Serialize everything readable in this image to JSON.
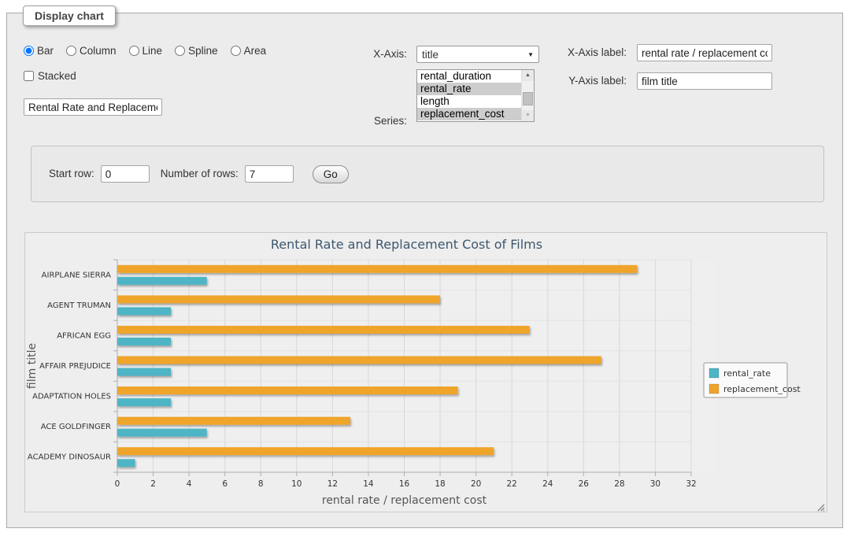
{
  "window": {
    "legend": "Display chart"
  },
  "controls": {
    "chart_types": {
      "options": [
        {
          "label": "Bar",
          "selected": true
        },
        {
          "label": "Column",
          "selected": false
        },
        {
          "label": "Line",
          "selected": false
        },
        {
          "label": "Spline",
          "selected": false
        },
        {
          "label": "Area",
          "selected": false
        }
      ]
    },
    "stacked": {
      "label": "Stacked",
      "checked": false
    },
    "chart_title_input": {
      "value": "Rental Rate and Replacement Cost of Films"
    },
    "x_axis": {
      "label": "X-Axis:",
      "value": "title"
    },
    "series_list": {
      "label": "Series:",
      "options": [
        {
          "label": "rental_duration",
          "selected": false
        },
        {
          "label": "rental_rate",
          "selected": true
        },
        {
          "label": "length",
          "selected": false
        },
        {
          "label": "replacement_cost",
          "selected": true
        }
      ]
    },
    "x_axis_label": {
      "label": "X-Axis label:",
      "value": "rental rate / replacement cost"
    },
    "y_axis_label": {
      "label": "Y-Axis label:",
      "value": "film title"
    }
  },
  "row_controls": {
    "start_row_label": "Start row:",
    "start_row_value": "0",
    "num_rows_label": "Number of rows:",
    "num_rows_value": "7",
    "go_label": "Go"
  },
  "chart_data": {
    "type": "bar",
    "title": "Rental Rate and Replacement Cost of Films",
    "categories": [
      "AIRPLANE SIERRA",
      "AGENT TRUMAN",
      "AFRICAN EGG",
      "AFFAIR PREJUDICE",
      "ADAPTATION HOLES",
      "ACE GOLDFINGER",
      "ACADEMY DINOSAUR"
    ],
    "series": [
      {
        "name": "rental_rate",
        "color": "#4db5c5",
        "values": [
          4.99,
          2.99,
          2.99,
          2.99,
          2.99,
          4.99,
          0.99
        ]
      },
      {
        "name": "replacement_cost",
        "color": "#efa42b",
        "values": [
          28.99,
          17.99,
          22.99,
          26.99,
          18.99,
          12.99,
          20.99
        ]
      }
    ],
    "xlabel": "rental rate / replacement cost",
    "ylabel": "film title",
    "xlim": [
      0,
      32
    ],
    "xtick_step": 2,
    "grid": true,
    "legend_position": "right",
    "colors": {
      "title": "#3e576f",
      "axis_title": "#555555",
      "tick_label": "#333333",
      "grid_line": "#d8d8d8",
      "axis_line": "#aeaeae",
      "plot_bg": "#efefef",
      "legend_bg": "#fafafa",
      "legend_border": "#999999"
    }
  }
}
